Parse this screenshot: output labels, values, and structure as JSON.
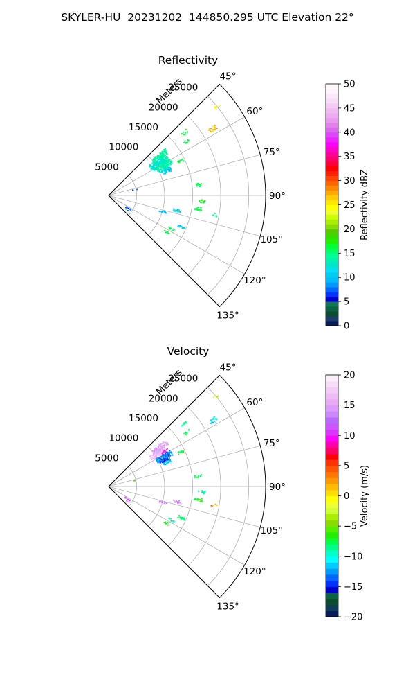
{
  "figure_title": "SKYLER-HU  20231202  144850.295 UTC Elevation 22°",
  "chart_data": [
    {
      "type": "sector_ppi",
      "title": "Reflectivity",
      "radial_axis_label": "Meters",
      "radial_ticks": [
        5000,
        10000,
        15000,
        20000,
        25000
      ],
      "radial_tick_labels": [
        "5000",
        "10000",
        "15000",
        "20000",
        "25000"
      ],
      "r_max": 28000,
      "azimuth_range": [
        45,
        135
      ],
      "azimuth_ticks": [
        45,
        60,
        75,
        90,
        105,
        120,
        135
      ],
      "azimuth_tick_labels": [
        "45°",
        "60°",
        "75°",
        "90°",
        "105°",
        "120°",
        "135°"
      ],
      "grid": true,
      "colorbar": {
        "label": "Reflectivity dBZ",
        "min": 0,
        "max": 50,
        "ticks": [
          0,
          5,
          10,
          15,
          20,
          25,
          30,
          35,
          40,
          45,
          50
        ],
        "tick_labels": [
          "0",
          "5",
          "10",
          "15",
          "20",
          "25",
          "30",
          "35",
          "40",
          "45",
          "50"
        ],
        "colors": [
          "#081d58",
          "#1d3b6b",
          "#0d4d2f",
          "#0a6342",
          "#0f7a54",
          "#0000c8",
          "#0033ff",
          "#0066ff",
          "#0099ff",
          "#00bbff",
          "#00ccee",
          "#00ddff",
          "#00e5cc",
          "#00f0b0",
          "#00ff99",
          "#00ff66",
          "#00ff33",
          "#22ee00",
          "#33dd00",
          "#55cc00",
          "#88dd00",
          "#aaee00",
          "#ccff00",
          "#eeff33",
          "#ffff00",
          "#ffe600",
          "#ffcc00",
          "#ffaa00",
          "#ff8800",
          "#ff6600",
          "#ff4400",
          "#ff2200",
          "#ff0000",
          "#ff0033",
          "#ff0066",
          "#ff0099",
          "#ff00cc",
          "#ff00ff",
          "#ee22ff",
          "#dd44ff",
          "#dd66ee",
          "#e080e8",
          "#e899ee",
          "#eeaaf0",
          "#f0bbf2",
          "#f4ccf6",
          "#f8ddf8",
          "#fae8fb",
          "#fdf2fd",
          "#fff8ff"
        ]
      },
      "echoes": [
        {
          "az": 52,
          "r": 11500,
          "value": 14,
          "count": 30
        },
        {
          "az": 55,
          "r": 10600,
          "value": 13,
          "count": 35
        },
        {
          "az": 58,
          "r": 10800,
          "value": 13,
          "count": 35
        },
        {
          "az": 61,
          "r": 11200,
          "value": 14,
          "count": 30
        },
        {
          "az": 64,
          "r": 11000,
          "value": 12,
          "count": 15
        },
        {
          "az": 67,
          "r": 11300,
          "value": 10,
          "count": 8
        },
        {
          "az": 50,
          "r": 17500,
          "value": 16,
          "count": 3
        },
        {
          "az": 55,
          "r": 17000,
          "value": 17,
          "count": 3
        },
        {
          "az": 64,
          "r": 14300,
          "value": 16,
          "count": 4
        },
        {
          "az": 57,
          "r": 22000,
          "value": 27,
          "count": 6
        },
        {
          "az": 50,
          "r": 25000,
          "value": 24,
          "count": 2
        },
        {
          "az": 83,
          "r": 16000,
          "value": 16,
          "count": 4
        },
        {
          "az": 93,
          "r": 16500,
          "value": 17,
          "count": 4
        },
        {
          "az": 98,
          "r": 16000,
          "value": 16,
          "count": 6
        },
        {
          "az": 102,
          "r": 12400,
          "value": 11,
          "count": 6
        },
        {
          "az": 106,
          "r": 10000,
          "value": 10,
          "count": 5
        },
        {
          "az": 113,
          "r": 14000,
          "value": 11,
          "count": 5
        },
        {
          "az": 118,
          "r": 12500,
          "value": 16,
          "count": 3
        },
        {
          "az": 122,
          "r": 12000,
          "value": 16,
          "count": 3
        },
        {
          "az": 100,
          "r": 19000,
          "value": 14,
          "count": 2
        },
        {
          "az": 123,
          "r": 4000,
          "value": 8,
          "count": 4
        },
        {
          "az": 128,
          "r": 3800,
          "value": 5,
          "count": 1
        },
        {
          "az": 76,
          "r": 4800,
          "value": 7,
          "count": 1
        }
      ]
    },
    {
      "type": "sector_ppi",
      "title": "Velocity",
      "radial_axis_label": "Meters",
      "radial_ticks": [
        5000,
        10000,
        15000,
        20000,
        25000
      ],
      "radial_tick_labels": [
        "5000",
        "10000",
        "15000",
        "20000",
        "25000"
      ],
      "r_max": 28000,
      "azimuth_range": [
        45,
        135
      ],
      "azimuth_ticks": [
        45,
        60,
        75,
        90,
        105,
        120,
        135
      ],
      "azimuth_tick_labels": [
        "45°",
        "60°",
        "75°",
        "90°",
        "105°",
        "120°",
        "135°"
      ],
      "grid": true,
      "colorbar": {
        "label": "Velocity (m/s)",
        "min": -20,
        "max": 20,
        "ticks": [
          -20,
          -15,
          -10,
          -5,
          0,
          5,
          10,
          15,
          20
        ],
        "tick_labels": [
          "−20",
          "−15",
          "−10",
          "−5",
          "0",
          "5",
          "10",
          "15",
          "20"
        ],
        "colors": [
          "#081d58",
          "#0d3b5a",
          "#0d4d2f",
          "#0a6342",
          "#0000c8",
          "#0033ff",
          "#0066ff",
          "#0099ff",
          "#00ccff",
          "#00ffff",
          "#00ffcc",
          "#00ff88",
          "#00ff44",
          "#22ee00",
          "#55ee00",
          "#88dd00",
          "#aaee00",
          "#ccff33",
          "#eeff33",
          "#ffff00",
          "#ffdd00",
          "#ffbb00",
          "#ff9900",
          "#ff7700",
          "#ff5500",
          "#ff3300",
          "#ff0000",
          "#ff0066",
          "#ff00aa",
          "#ff00ff",
          "#dd33ff",
          "#cc55ff",
          "#bb66ff",
          "#cc88ff",
          "#dd99ff",
          "#e8aaf5",
          "#eebbf5",
          "#f4ccf8",
          "#f8ddfa",
          "#fbeefc"
        ]
      },
      "echoes": [
        {
          "az": 52,
          "r": 11500,
          "value": 15,
          "count": 30
        },
        {
          "az": 55,
          "r": 10600,
          "value": 16,
          "count": 30
        },
        {
          "az": 58,
          "r": 10800,
          "value": 17,
          "count": 20
        },
        {
          "az": 61,
          "r": 11200,
          "value": -13,
          "count": 30
        },
        {
          "az": 64,
          "r": 11000,
          "value": -14,
          "count": 15
        },
        {
          "az": 67,
          "r": 11300,
          "value": -12,
          "count": 8
        },
        {
          "az": 57,
          "r": 11800,
          "value": 10,
          "count": 4
        },
        {
          "az": 50,
          "r": 17500,
          "value": -9,
          "count": 3
        },
        {
          "az": 55,
          "r": 17000,
          "value": -8,
          "count": 3
        },
        {
          "az": 64,
          "r": 14300,
          "value": -7,
          "count": 4
        },
        {
          "az": 57,
          "r": 22000,
          "value": -11,
          "count": 6
        },
        {
          "az": 50,
          "r": 25000,
          "value": -2,
          "count": 2
        },
        {
          "az": 83,
          "r": 16000,
          "value": -8,
          "count": 4
        },
        {
          "az": 93,
          "r": 16500,
          "value": -9,
          "count": 4
        },
        {
          "az": 98,
          "r": 16000,
          "value": -7,
          "count": 6
        },
        {
          "az": 102,
          "r": 12400,
          "value": 14,
          "count": 6
        },
        {
          "az": 106,
          "r": 10000,
          "value": 13,
          "count": 5
        },
        {
          "az": 113,
          "r": 14000,
          "value": -8,
          "count": 5
        },
        {
          "az": 118,
          "r": 12500,
          "value": -9,
          "count": 3
        },
        {
          "az": 122,
          "r": 12000,
          "value": -7,
          "count": 3
        },
        {
          "az": 100,
          "r": 19000,
          "value": 3,
          "count": 2
        },
        {
          "az": 123,
          "r": 4000,
          "value": 12,
          "count": 4
        },
        {
          "az": 128,
          "r": 3800,
          "value": 14,
          "count": 1
        },
        {
          "az": 76,
          "r": 4800,
          "value": -6,
          "count": 1
        }
      ]
    }
  ]
}
